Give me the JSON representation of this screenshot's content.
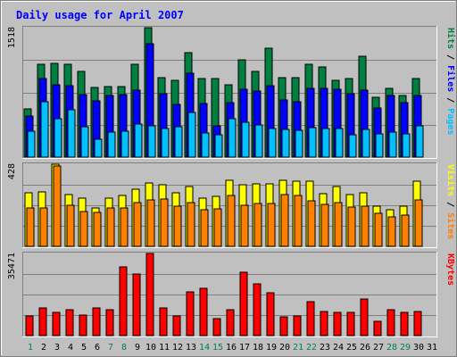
{
  "chart_data": {
    "type": "bar",
    "title": "Daily usage for April 2007",
    "categories": [
      "1",
      "2",
      "3",
      "4",
      "5",
      "6",
      "7",
      "8",
      "9",
      "10",
      "11",
      "12",
      "13",
      "14",
      "15",
      "16",
      "17",
      "18",
      "19",
      "20",
      "21",
      "22",
      "23",
      "24",
      "25",
      "26",
      "27",
      "28",
      "29",
      "30",
      "31"
    ],
    "weekend_days": [
      "1",
      "7",
      "8",
      "14",
      "15",
      "21",
      "22",
      "28",
      "29"
    ],
    "panels": [
      {
        "id": "hits",
        "ylim": [
          0,
          1518
        ],
        "max_label": "1518",
        "legend": [
          "Pages",
          "Files",
          "Hits"
        ],
        "series": [
          {
            "name": "Hits",
            "color": "#008040",
            "values": [
              570,
              1090,
              1100,
              1090,
              1000,
              820,
              830,
              830,
              1090,
              1518,
              930,
              900,
              1220,
              920,
              920,
              850,
              1140,
              1000,
              1280,
              930,
              930,
              1090,
              1060,
              900,
              920,
              1180,
              700,
              810,
              720,
              920,
              0
            ]
          },
          {
            "name": "Files",
            "color": "#0000ff",
            "values": [
              480,
              920,
              850,
              840,
              730,
              660,
              720,
              730,
              780,
              1330,
              740,
              620,
              980,
              630,
              370,
              640,
              800,
              770,
              840,
              670,
              650,
              810,
              810,
              800,
              740,
              780,
              580,
              720,
              640,
              720,
              0
            ]
          },
          {
            "name": "Pages",
            "color": "#00c0ff",
            "values": [
              300,
              650,
              450,
              550,
              360,
              210,
              290,
              300,
              390,
              370,
              340,
              360,
              520,
              280,
              260,
              450,
              410,
              380,
              340,
              320,
              310,
              350,
              340,
              330,
              260,
              320,
              270,
              290,
              270,
              370,
              0
            ]
          }
        ]
      },
      {
        "id": "visits",
        "ylim": [
          0,
          428
        ],
        "max_label": "428",
        "legend": [
          "Sites",
          "Visits"
        ],
        "series": [
          {
            "name": "Visits",
            "color": "#ffff00",
            "values": [
              280,
              285,
              428,
              270,
              250,
              200,
              250,
              265,
              300,
              330,
              320,
              280,
              310,
              250,
              260,
              345,
              320,
              325,
              325,
              345,
              340,
              340,
              275,
              310,
              270,
              280,
              210,
              190,
              210,
              340,
              0
            ]
          },
          {
            "name": "Sites",
            "color": "#ff8000",
            "values": [
              200,
              200,
              420,
              215,
              180,
              175,
              200,
              200,
              230,
              240,
              245,
              210,
              230,
              190,
              195,
              265,
              215,
              225,
              225,
              270,
              265,
              235,
              220,
              230,
              205,
              210,
              170,
              155,
              165,
              240,
              0
            ]
          }
        ]
      },
      {
        "id": "kbytes",
        "ylim": [
          0,
          35471
        ],
        "max_label": "35471",
        "legend": [
          "KBytes"
        ],
        "series": [
          {
            "name": "KBytes",
            "color": "#ff0000",
            "values": [
              8600,
              11800,
              10000,
              11000,
              9000,
              12000,
              11200,
              29500,
              26500,
              35471,
              12000,
              8600,
              19000,
              20500,
              7500,
              11000,
              27500,
              22500,
              18500,
              8200,
              8500,
              14500,
              10500,
              10000,
              10000,
              15800,
              6300,
              11200,
              10200,
              10500,
              0
            ]
          }
        ]
      }
    ]
  },
  "colors": {
    "frame_bg": "#c0c0c0",
    "title": "#0000ff",
    "weekday": "#000000",
    "weekend": "#00805c",
    "slash": "#000000"
  }
}
